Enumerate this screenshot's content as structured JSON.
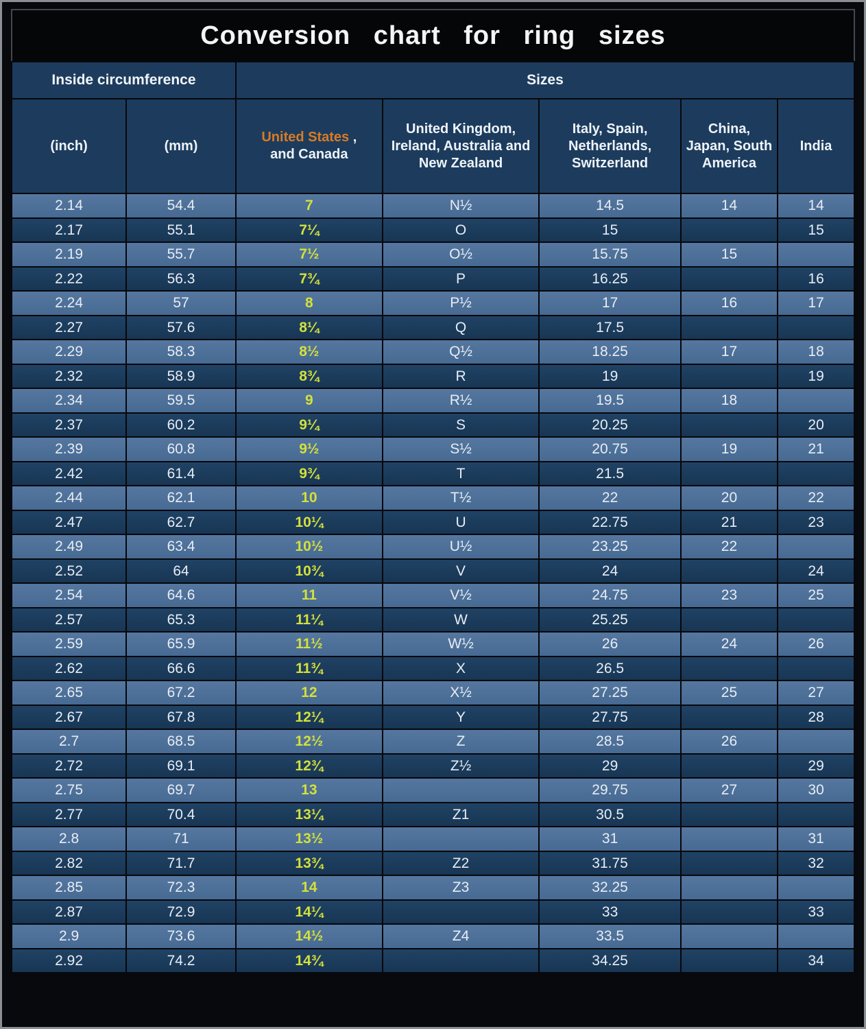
{
  "chart_data": {
    "type": "table",
    "title": "Conversion chart for ring sizes",
    "group_headers": [
      {
        "label": "Inside circumference",
        "span": 2
      },
      {
        "label": "Sizes",
        "span": 5
      }
    ],
    "columns": [
      "(inch)",
      "(mm)",
      "United States , and Canada",
      "United Kingdom, Ireland, Australia and New Zealand",
      "Italy,  Spain, Netherlands, Switzerland",
      "China, Japan, South America",
      "India"
    ],
    "us_header": {
      "accent": "United States",
      "suffix": " ,",
      "line2": "and Canada"
    },
    "rows": [
      [
        "2.14",
        "54.4",
        "7",
        "N½",
        "14.5",
        "14",
        "14"
      ],
      [
        "2.17",
        "55.1",
        "7¼",
        "O",
        "15",
        "",
        "15"
      ],
      [
        "2.19",
        "55.7",
        "7½",
        "O½",
        "15.75",
        "15",
        ""
      ],
      [
        "2.22",
        "56.3",
        "7¾",
        "P",
        "16.25",
        "",
        "16"
      ],
      [
        "2.24",
        "57",
        "8",
        "P½",
        "17",
        "16",
        "17"
      ],
      [
        "2.27",
        "57.6",
        "8¼",
        "Q",
        "17.5",
        "",
        ""
      ],
      [
        "2.29",
        "58.3",
        "8½",
        "Q½",
        "18.25",
        "17",
        "18"
      ],
      [
        "2.32",
        "58.9",
        "8¾",
        "R",
        "19",
        "",
        "19"
      ],
      [
        "2.34",
        "59.5",
        "9",
        "R½",
        "19.5",
        "18",
        ""
      ],
      [
        "2.37",
        "60.2",
        "9¼",
        "S",
        "20.25",
        "",
        "20"
      ],
      [
        "2.39",
        "60.8",
        "9½",
        "S½",
        "20.75",
        "19",
        "21"
      ],
      [
        "2.42",
        "61.4",
        "9¾",
        "T",
        "21.5",
        "",
        ""
      ],
      [
        "2.44",
        "62.1",
        "10",
        "T½",
        "22",
        "20",
        "22"
      ],
      [
        "2.47",
        "62.7",
        "10¼",
        "U",
        "22.75",
        "21",
        "23"
      ],
      [
        "2.49",
        "63.4",
        "10½",
        "U½",
        "23.25",
        "22",
        ""
      ],
      [
        "2.52",
        "64",
        "10¾",
        "V",
        "24",
        "",
        "24"
      ],
      [
        "2.54",
        "64.6",
        "11",
        "V½",
        "24.75",
        "23",
        "25"
      ],
      [
        "2.57",
        "65.3",
        "11¼",
        "W",
        "25.25",
        "",
        ""
      ],
      [
        "2.59",
        "65.9",
        "11½",
        "W½",
        "26",
        "24",
        "26"
      ],
      [
        "2.62",
        "66.6",
        "11¾",
        "X",
        "26.5",
        "",
        ""
      ],
      [
        "2.65",
        "67.2",
        "12",
        "X½",
        "27.25",
        "25",
        "27"
      ],
      [
        "2.67",
        "67.8",
        "12¼",
        "Y",
        "27.75",
        "",
        "28"
      ],
      [
        "2.7",
        "68.5",
        "12½",
        "Z",
        "28.5",
        "26",
        ""
      ],
      [
        "2.72",
        "69.1",
        "12¾",
        "Z½",
        "29",
        "",
        "29"
      ],
      [
        "2.75",
        "69.7",
        "13",
        "",
        "29.75",
        "27",
        "30"
      ],
      [
        "2.77",
        "70.4",
        "13¼",
        "Z1",
        "30.5",
        "",
        ""
      ],
      [
        "2.8",
        "71",
        "13½",
        "",
        "31",
        "",
        "31"
      ],
      [
        "2.82",
        "71.7",
        "13¾",
        "Z2",
        "31.75",
        "",
        "32"
      ],
      [
        "2.85",
        "72.3",
        "14",
        "Z3",
        "32.25",
        "",
        ""
      ],
      [
        "2.87",
        "72.9",
        "14¼",
        "",
        "33",
        "",
        "33"
      ],
      [
        "2.9",
        "73.6",
        "14½",
        "Z4",
        "33.5",
        "",
        ""
      ],
      [
        "2.92",
        "74.2",
        "14¾",
        "",
        "34.25",
        "",
        "34"
      ]
    ],
    "layout": {
      "striped_rows": true,
      "row_light_color": "#4d7099",
      "row_dark_color": "#1b3a5c",
      "header_color": "#1d3c5d",
      "us_value_color": "#d4e03b",
      "us_header_accent_color": "#d97b25",
      "title_background": "#050608",
      "text_color": "#e7edf5"
    }
  }
}
